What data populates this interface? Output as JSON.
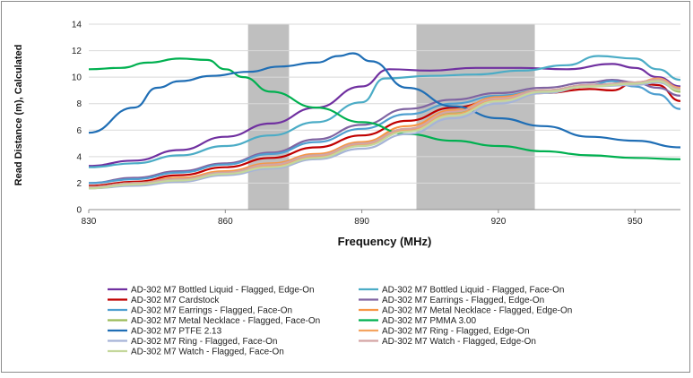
{
  "chart_data": {
    "type": "line",
    "title": "",
    "xlabel": "Frequency (MHz)",
    "ylabel": "Read Distance (m), Calculated",
    "xlim": [
      830,
      960
    ],
    "ylim": [
      0,
      14
    ],
    "x_ticks": [
      830,
      860,
      890,
      920,
      950
    ],
    "y_ticks": [
      0,
      2,
      4,
      6,
      8,
      10,
      12,
      14
    ],
    "grid": "horizontal",
    "legend_position": "bottom",
    "shaded_regions": [
      {
        "from": 865,
        "to": 874
      },
      {
        "from": 902,
        "to": 928
      }
    ],
    "shade_color": "#bfbfbf",
    "series": [
      {
        "name": "AD-302 M7 Bottled Liquid - Flagged, Edge-On",
        "color": "#7030a0",
        "points": [
          [
            830,
            3.3
          ],
          [
            840,
            3.7
          ],
          [
            850,
            4.5
          ],
          [
            860,
            5.5
          ],
          [
            870,
            6.5
          ],
          [
            880,
            7.7
          ],
          [
            890,
            9.3
          ],
          [
            896,
            10.6
          ],
          [
            905,
            10.5
          ],
          [
            915,
            10.7
          ],
          [
            925,
            10.7
          ],
          [
            935,
            10.6
          ],
          [
            945,
            11.0
          ],
          [
            950,
            10.7
          ],
          [
            955,
            10.0
          ],
          [
            960,
            9.3
          ]
        ]
      },
      {
        "name": "AD-302 M7 Bottled Liquid - Flagged, Face-On",
        "color": "#4bacc6",
        "points": [
          [
            830,
            3.2
          ],
          [
            840,
            3.5
          ],
          [
            850,
            4.1
          ],
          [
            860,
            4.8
          ],
          [
            870,
            5.6
          ],
          [
            880,
            6.6
          ],
          [
            890,
            8.1
          ],
          [
            895,
            9.9
          ],
          [
            905,
            10.1
          ],
          [
            915,
            10.2
          ],
          [
            925,
            10.5
          ],
          [
            935,
            10.9
          ],
          [
            942,
            11.6
          ],
          [
            950,
            11.4
          ],
          [
            955,
            10.6
          ],
          [
            960,
            9.8
          ]
        ]
      },
      {
        "name": "AD-302 M7 Cardstock",
        "color": "#c00000",
        "points": [
          [
            830,
            1.8
          ],
          [
            840,
            2.1
          ],
          [
            850,
            2.6
          ],
          [
            860,
            3.2
          ],
          [
            870,
            3.9
          ],
          [
            880,
            4.7
          ],
          [
            890,
            5.6
          ],
          [
            900,
            6.7
          ],
          [
            910,
            7.7
          ],
          [
            920,
            8.3
          ],
          [
            930,
            8.8
          ],
          [
            940,
            9.1
          ],
          [
            945,
            9.0
          ],
          [
            950,
            9.6
          ],
          [
            955,
            9.4
          ],
          [
            960,
            8.2
          ]
        ]
      },
      {
        "name": "AD-302 M7 Earrings - Flagged, Edge-On",
        "color": "#8064a2",
        "points": [
          [
            830,
            2.0
          ],
          [
            840,
            2.4
          ],
          [
            850,
            2.9
          ],
          [
            860,
            3.5
          ],
          [
            870,
            4.3
          ],
          [
            880,
            5.3
          ],
          [
            890,
            6.4
          ],
          [
            900,
            7.6
          ],
          [
            910,
            8.3
          ],
          [
            920,
            8.8
          ],
          [
            930,
            9.2
          ],
          [
            940,
            9.6
          ],
          [
            945,
            9.8
          ],
          [
            950,
            9.6
          ],
          [
            955,
            9.2
          ],
          [
            960,
            8.6
          ]
        ]
      },
      {
        "name": "AD-302 M7 Earrings - Flagged, Face-On",
        "color": "#4f9fd0",
        "points": [
          [
            830,
            2.0
          ],
          [
            840,
            2.3
          ],
          [
            850,
            2.8
          ],
          [
            860,
            3.4
          ],
          [
            870,
            4.2
          ],
          [
            880,
            5.1
          ],
          [
            890,
            6.1
          ],
          [
            900,
            7.2
          ],
          [
            910,
            8.0
          ],
          [
            920,
            8.6
          ],
          [
            930,
            9.0
          ],
          [
            940,
            9.4
          ],
          [
            945,
            9.7
          ],
          [
            950,
            9.3
          ],
          [
            955,
            8.7
          ],
          [
            960,
            7.6
          ]
        ]
      },
      {
        "name": "AD-302 M7 Metal Necklace - Flagged, Edge-On",
        "color": "#f79646",
        "points": [
          [
            830,
            1.7
          ],
          [
            840,
            2.0
          ],
          [
            850,
            2.4
          ],
          [
            860,
            2.9
          ],
          [
            870,
            3.5
          ],
          [
            880,
            4.2
          ],
          [
            890,
            5.1
          ],
          [
            900,
            6.3
          ],
          [
            910,
            7.5
          ],
          [
            920,
            8.5
          ],
          [
            930,
            9.0
          ],
          [
            940,
            9.4
          ],
          [
            950,
            9.6
          ],
          [
            955,
            9.8
          ],
          [
            960,
            9.0
          ]
        ]
      },
      {
        "name": "AD-302 M7 Metal Necklace - Flagged, Face-On",
        "color": "#9bbb59",
        "points": [
          [
            830,
            1.7
          ],
          [
            840,
            2.0
          ],
          [
            850,
            2.3
          ],
          [
            860,
            2.8
          ],
          [
            870,
            3.4
          ],
          [
            880,
            4.1
          ],
          [
            890,
            5.0
          ],
          [
            900,
            6.1
          ],
          [
            910,
            7.3
          ],
          [
            920,
            8.3
          ],
          [
            930,
            8.9
          ],
          [
            940,
            9.3
          ],
          [
            950,
            9.5
          ],
          [
            955,
            9.7
          ],
          [
            960,
            8.9
          ]
        ]
      },
      {
        "name": "AD-302 M7 PMMA 3.00",
        "color": "#00b050",
        "points": [
          [
            830,
            10.6
          ],
          [
            837,
            10.7
          ],
          [
            843,
            11.1
          ],
          [
            850,
            11.4
          ],
          [
            856,
            11.3
          ],
          [
            860,
            10.6
          ],
          [
            864,
            10.0
          ],
          [
            870,
            8.9
          ],
          [
            880,
            7.7
          ],
          [
            890,
            6.6
          ],
          [
            900,
            5.7
          ],
          [
            910,
            5.2
          ],
          [
            920,
            4.8
          ],
          [
            930,
            4.4
          ],
          [
            940,
            4.1
          ],
          [
            950,
            3.9
          ],
          [
            960,
            3.8
          ]
        ]
      },
      {
        "name": "AD-302 M7 PTFE 2.13",
        "color": "#1f6eb5",
        "points": [
          [
            830,
            5.8
          ],
          [
            840,
            7.7
          ],
          [
            845,
            9.2
          ],
          [
            850,
            9.7
          ],
          [
            857,
            10.1
          ],
          [
            865,
            10.4
          ],
          [
            872,
            10.8
          ],
          [
            880,
            11.1
          ],
          [
            885,
            11.6
          ],
          [
            888,
            11.8
          ],
          [
            892,
            11.2
          ],
          [
            900,
            9.2
          ],
          [
            910,
            7.8
          ],
          [
            920,
            6.9
          ],
          [
            930,
            6.3
          ],
          [
            940,
            5.5
          ],
          [
            950,
            5.2
          ],
          [
            960,
            4.7
          ]
        ]
      },
      {
        "name": "AD-302 M7 Ring - Flagged, Edge-On",
        "color": "#f4a460",
        "points": [
          [
            830,
            1.6
          ],
          [
            840,
            1.9
          ],
          [
            850,
            2.2
          ],
          [
            860,
            2.7
          ],
          [
            870,
            3.3
          ],
          [
            880,
            4.0
          ],
          [
            890,
            4.9
          ],
          [
            900,
            6.0
          ],
          [
            910,
            7.2
          ],
          [
            920,
            8.3
          ],
          [
            930,
            8.9
          ],
          [
            940,
            9.3
          ],
          [
            950,
            9.5
          ],
          [
            955,
            9.9
          ],
          [
            960,
            9.2
          ]
        ]
      },
      {
        "name": "AD-302 M7 Ring - Flagged, Face-On",
        "color": "#a6b4d8",
        "points": [
          [
            830,
            1.6
          ],
          [
            840,
            1.8
          ],
          [
            850,
            2.1
          ],
          [
            860,
            2.6
          ],
          [
            870,
            3.1
          ],
          [
            880,
            3.8
          ],
          [
            890,
            4.6
          ],
          [
            900,
            5.7
          ],
          [
            910,
            6.9
          ],
          [
            920,
            8.0
          ],
          [
            930,
            8.8
          ],
          [
            940,
            9.3
          ],
          [
            950,
            9.4
          ],
          [
            955,
            9.6
          ],
          [
            960,
            9.0
          ]
        ]
      },
      {
        "name": "AD-302 M7 Watch - Flagged, Edge-On",
        "color": "#d4a5a5",
        "points": [
          [
            830,
            1.7
          ],
          [
            840,
            2.0
          ],
          [
            850,
            2.3
          ],
          [
            860,
            2.8
          ],
          [
            870,
            3.4
          ],
          [
            880,
            4.1
          ],
          [
            890,
            5.0
          ],
          [
            900,
            6.1
          ],
          [
            910,
            7.4
          ],
          [
            920,
            8.4
          ],
          [
            930,
            9.0
          ],
          [
            940,
            9.4
          ],
          [
            950,
            9.6
          ],
          [
            955,
            9.8
          ],
          [
            960,
            9.1
          ]
        ]
      },
      {
        "name": "AD-302 M7 Watch - Flagged, Face-On",
        "color": "#c4d79b",
        "points": [
          [
            830,
            1.6
          ],
          [
            840,
            1.9
          ],
          [
            850,
            2.2
          ],
          [
            860,
            2.7
          ],
          [
            870,
            3.2
          ],
          [
            880,
            3.9
          ],
          [
            890,
            4.8
          ],
          [
            900,
            5.9
          ],
          [
            910,
            7.1
          ],
          [
            920,
            8.2
          ],
          [
            930,
            8.9
          ],
          [
            940,
            9.3
          ],
          [
            950,
            9.5
          ],
          [
            955,
            9.7
          ],
          [
            960,
            9.0
          ]
        ]
      }
    ]
  }
}
